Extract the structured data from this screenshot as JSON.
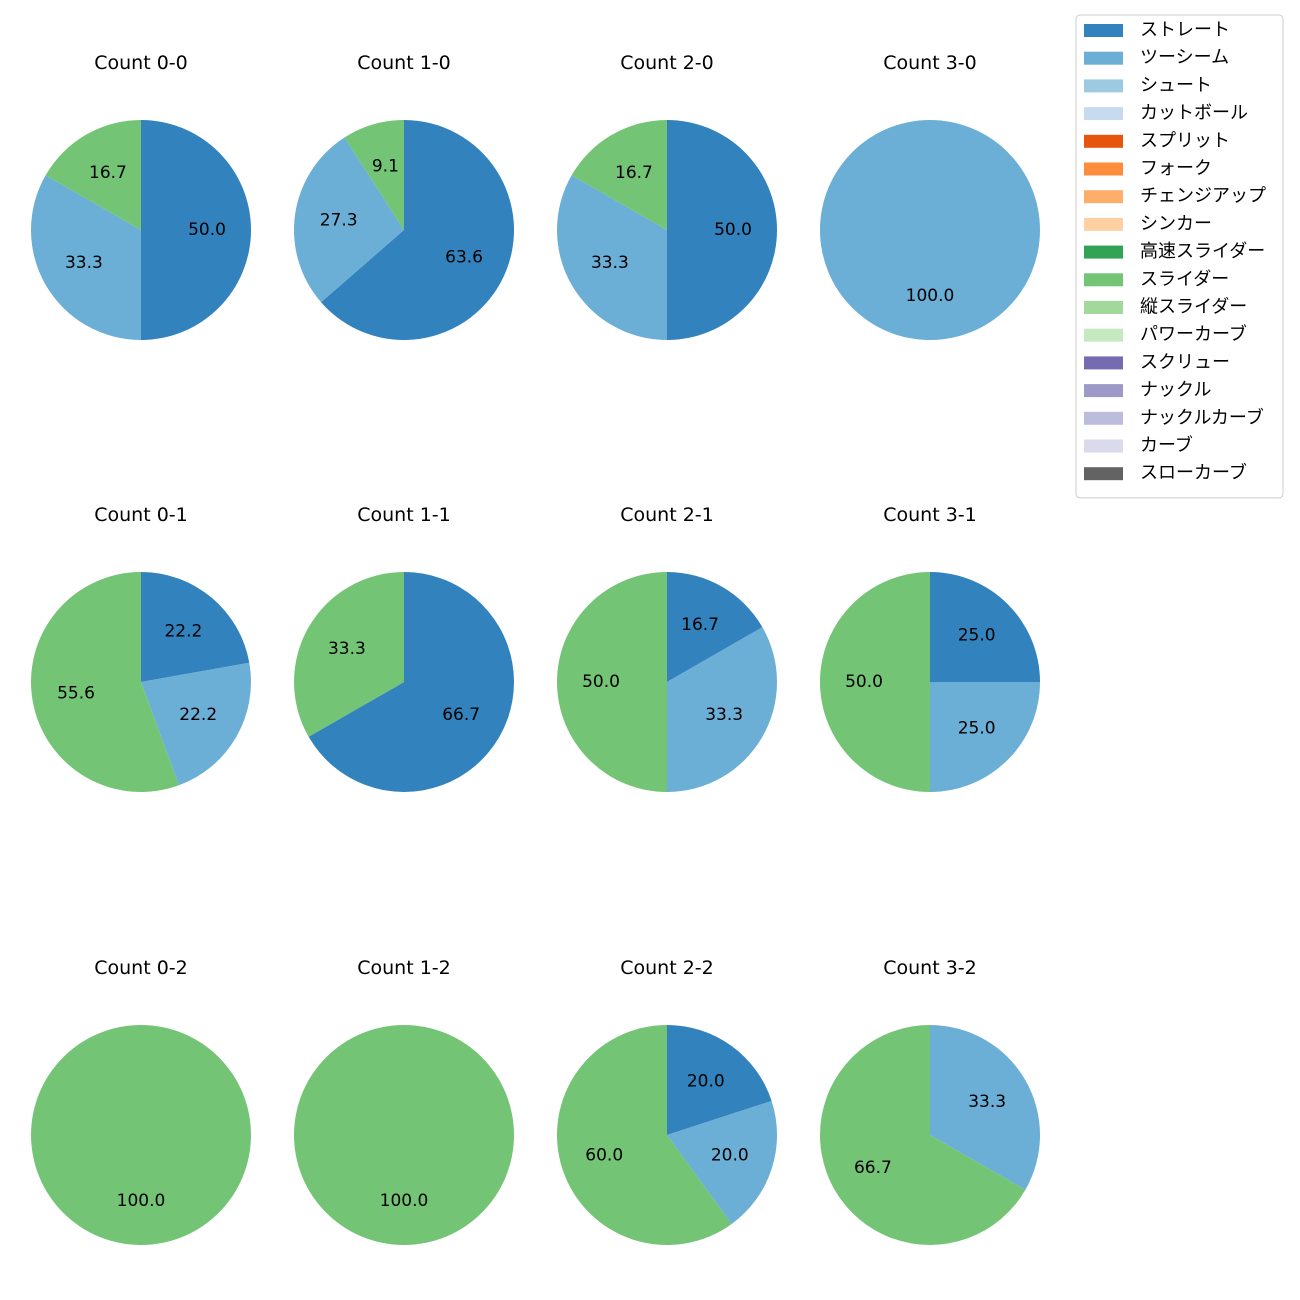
{
  "chart_data": {
    "type": "pie",
    "layout": "grid",
    "rows": 3,
    "cols": 4,
    "legend_position": "top-right",
    "legend": [
      {
        "name": "ストレート",
        "color": "#3182bd"
      },
      {
        "name": "ツーシーム",
        "color": "#6baed6"
      },
      {
        "name": "シュート",
        "color": "#9ecae1"
      },
      {
        "name": "カットボール",
        "color": "#c6dbef"
      },
      {
        "name": "スプリット",
        "color": "#e6550d"
      },
      {
        "name": "フォーク",
        "color": "#fd8d3c"
      },
      {
        "name": "チェンジアップ",
        "color": "#fdae6b"
      },
      {
        "name": "シンカー",
        "color": "#fdd0a2"
      },
      {
        "name": "高速スライダー",
        "color": "#31a354"
      },
      {
        "name": "スライダー",
        "color": "#74c476"
      },
      {
        "name": "縦スライダー",
        "color": "#a1d99b"
      },
      {
        "name": "パワーカーブ",
        "color": "#c7e9c0"
      },
      {
        "name": "スクリュー",
        "color": "#756bb1"
      },
      {
        "name": "ナックル",
        "color": "#9e9ac8"
      },
      {
        "name": "ナックルカーブ",
        "color": "#bcbddc"
      },
      {
        "name": "カーブ",
        "color": "#dadaeb"
      },
      {
        "name": "スローカーブ",
        "color": "#636363"
      }
    ],
    "charts": [
      {
        "title": "Count 0-0",
        "slices": [
          {
            "category": "ストレート",
            "value": 50.0,
            "label": "50.0"
          },
          {
            "category": "ツーシーム",
            "value": 33.3,
            "label": "33.3"
          },
          {
            "category": "スライダー",
            "value": 16.7,
            "label": "16.7"
          }
        ]
      },
      {
        "title": "Count 1-0",
        "slices": [
          {
            "category": "ストレート",
            "value": 63.6,
            "label": "63.6"
          },
          {
            "category": "ツーシーム",
            "value": 27.3,
            "label": "27.3"
          },
          {
            "category": "スライダー",
            "value": 9.1,
            "label": "9.1"
          }
        ]
      },
      {
        "title": "Count 2-0",
        "slices": [
          {
            "category": "ストレート",
            "value": 50.0,
            "label": "50.0"
          },
          {
            "category": "ツーシーム",
            "value": 33.3,
            "label": "33.3"
          },
          {
            "category": "スライダー",
            "value": 16.7,
            "label": "16.7"
          }
        ]
      },
      {
        "title": "Count 3-0",
        "slices": [
          {
            "category": "ツーシーム",
            "value": 100.0,
            "label": "100.0"
          }
        ]
      },
      {
        "title": "Count 0-1",
        "slices": [
          {
            "category": "ストレート",
            "value": 22.2,
            "label": "22.2"
          },
          {
            "category": "ツーシーム",
            "value": 22.2,
            "label": "22.2"
          },
          {
            "category": "スライダー",
            "value": 55.6,
            "label": "55.6"
          }
        ]
      },
      {
        "title": "Count 1-1",
        "slices": [
          {
            "category": "ストレート",
            "value": 66.7,
            "label": "66.7"
          },
          {
            "category": "スライダー",
            "value": 33.3,
            "label": "33.3"
          }
        ]
      },
      {
        "title": "Count 2-1",
        "slices": [
          {
            "category": "ストレート",
            "value": 16.7,
            "label": "16.7"
          },
          {
            "category": "ツーシーム",
            "value": 33.3,
            "label": "33.3"
          },
          {
            "category": "スライダー",
            "value": 50.0,
            "label": "50.0"
          }
        ]
      },
      {
        "title": "Count 3-1",
        "slices": [
          {
            "category": "ストレート",
            "value": 25.0,
            "label": "25.0"
          },
          {
            "category": "ツーシーム",
            "value": 25.0,
            "label": "25.0"
          },
          {
            "category": "スライダー",
            "value": 50.0,
            "label": "50.0"
          }
        ]
      },
      {
        "title": "Count 0-2",
        "slices": [
          {
            "category": "スライダー",
            "value": 100.0,
            "label": "100.0"
          }
        ]
      },
      {
        "title": "Count 1-2",
        "slices": [
          {
            "category": "スライダー",
            "value": 100.0,
            "label": "100.0"
          }
        ]
      },
      {
        "title": "Count 2-2",
        "slices": [
          {
            "category": "ストレート",
            "value": 20.0,
            "label": "20.0"
          },
          {
            "category": "ツーシーム",
            "value": 20.0,
            "label": "20.0"
          },
          {
            "category": "スライダー",
            "value": 60.0,
            "label": "60.0"
          }
        ]
      },
      {
        "title": "Count 3-2",
        "slices": [
          {
            "category": "ツーシーム",
            "value": 33.3,
            "label": "33.3"
          },
          {
            "category": "スライダー",
            "value": 66.7,
            "label": "66.7"
          }
        ]
      }
    ]
  }
}
